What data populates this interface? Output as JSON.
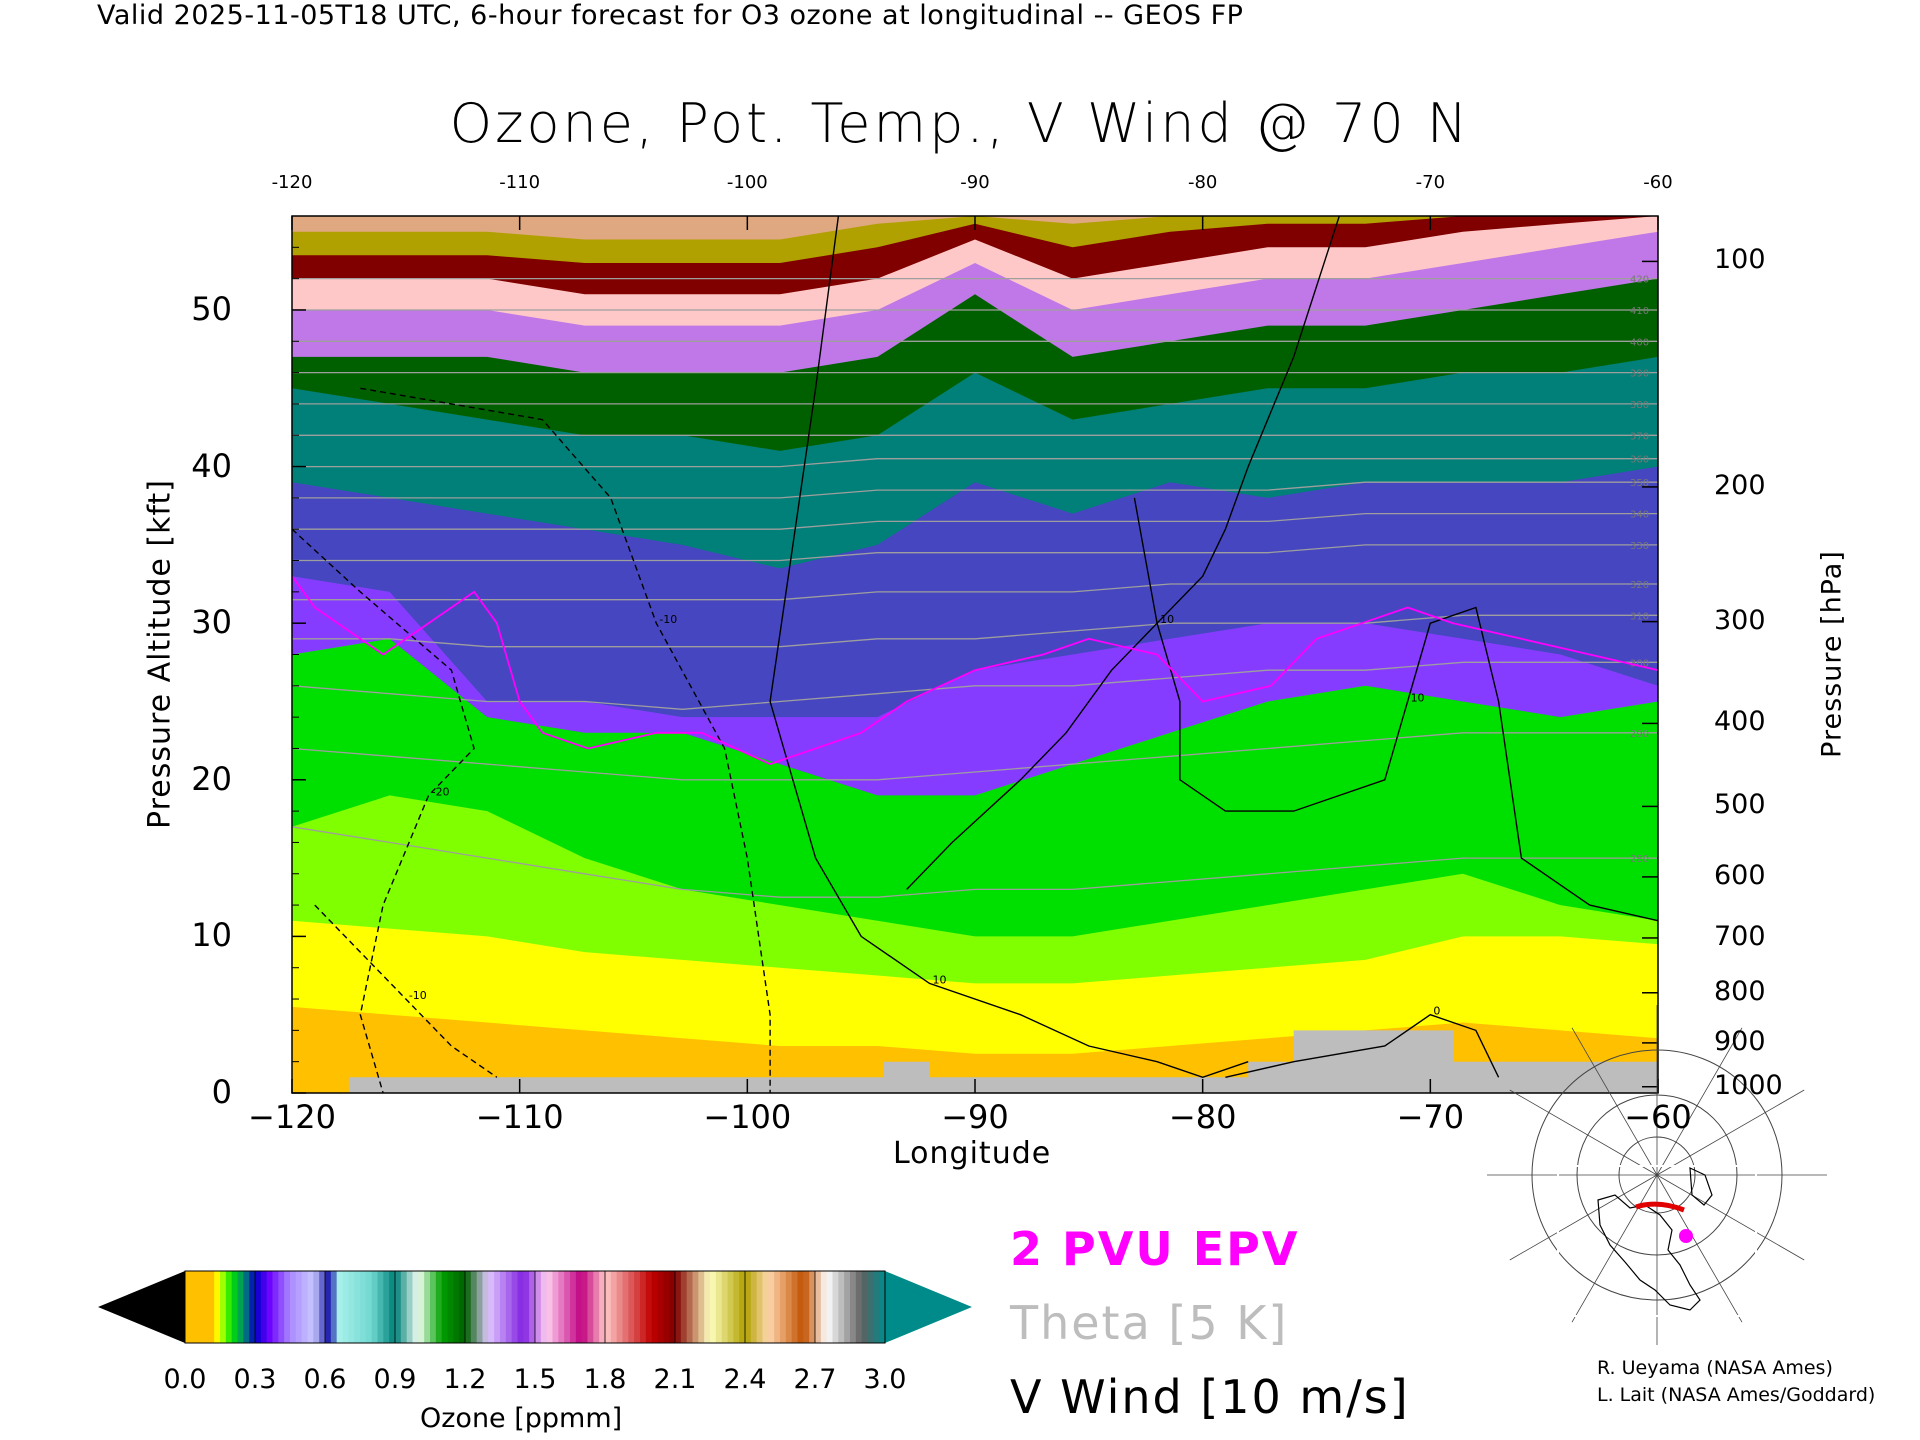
{
  "header": {
    "valid_line": "Valid 2025-11-05T18 UTC, 6-hour forecast for O3 ozone at longitudinal -- GEOS FP"
  },
  "chart_data": {
    "type": "heatmap",
    "title": "Ozone, Pot. Temp., V Wind @ 70 N",
    "xlabel": "Longitude",
    "ylabel": "Pressure Altitude [kft]",
    "y2label": "Pressure [hPa]",
    "xlim": [
      -120,
      -60
    ],
    "ylim": [
      0,
      56
    ],
    "x_ticks": [
      "−120",
      "−110",
      "−100",
      "−90",
      "−80",
      "−70",
      "−60"
    ],
    "x_top_ticks": [
      "-120",
      "-110",
      "-100",
      "-90",
      "-80",
      "-70",
      "-60"
    ],
    "y_ticks": [
      "0",
      "10",
      "20",
      "30",
      "40",
      "50"
    ],
    "pressure_ticks": [
      {
        "label": "1000",
        "alt_kft": 0.4
      },
      {
        "label": "900",
        "alt_kft": 3.2
      },
      {
        "label": "800",
        "alt_kft": 6.4
      },
      {
        "label": "700",
        "alt_kft": 9.9
      },
      {
        "label": "600",
        "alt_kft": 13.8
      },
      {
        "label": "500",
        "alt_kft": 18.3
      },
      {
        "label": "400",
        "alt_kft": 23.6
      },
      {
        "label": "300",
        "alt_kft": 30.1
      },
      {
        "label": "200",
        "alt_kft": 38.7
      },
      {
        "label": "100",
        "alt_kft": 53.1
      }
    ],
    "colorbar": {
      "label": "Ozone [ppmm]",
      "min": 0.0,
      "max": 3.0,
      "tick_labels": [
        "0.0",
        "0.3",
        "0.6",
        "0.9",
        "1.2",
        "1.5",
        "1.8",
        "2.1",
        "2.4",
        "2.7",
        "3.0"
      ]
    },
    "ozone_layers": [
      {
        "ppmm": 0.12,
        "tops_kft": [
          5.5,
          5,
          4.5,
          4,
          3.5,
          3,
          3,
          2.5,
          2.5,
          3,
          3.5,
          4,
          4.5,
          4,
          3.5
        ]
      },
      {
        "ppmm": 0.14,
        "tops_kft": [
          11,
          10.5,
          10,
          9,
          8.5,
          8,
          7.5,
          7,
          7,
          7.5,
          8,
          8.5,
          10,
          10,
          9.5
        ]
      },
      {
        "ppmm": 0.17,
        "tops_kft": [
          17,
          19,
          18,
          15,
          13,
          12,
          11,
          10,
          10,
          11,
          12,
          13,
          14,
          12,
          11
        ]
      },
      {
        "ppmm": 0.2,
        "tops_kft": [
          28,
          29,
          24,
          23,
          23,
          21,
          19,
          19,
          21,
          23,
          25,
          26,
          25,
          24,
          25
        ]
      },
      {
        "ppmm": 0.4,
        "tops_kft": [
          33,
          32,
          25,
          25,
          24,
          24,
          24,
          27,
          28,
          29,
          30,
          30,
          29,
          28,
          26
        ]
      },
      {
        "ppmm": 0.6,
        "tops_kft": [
          39,
          38,
          37,
          36,
          35,
          33.5,
          35,
          39,
          37,
          39,
          38,
          39,
          39,
          39,
          40
        ]
      },
      {
        "ppmm": 0.9,
        "tops_kft": [
          45,
          44,
          43,
          42,
          42,
          41,
          42,
          46,
          43,
          44,
          45,
          45,
          46,
          46,
          47
        ]
      },
      {
        "ppmm": 1.2,
        "tops_kft": [
          47,
          47,
          47,
          46,
          46,
          46,
          47,
          51,
          47,
          48,
          49,
          49,
          50,
          51,
          52
        ]
      },
      {
        "ppmm": 1.5,
        "tops_kft": [
          50,
          50,
          50,
          49,
          49,
          49,
          50,
          53,
          50,
          51,
          52,
          52,
          53,
          54,
          55
        ]
      },
      {
        "ppmm": 1.8,
        "tops_kft": [
          52,
          52,
          52,
          51,
          51,
          51,
          52,
          54.5,
          52,
          53,
          54,
          54,
          55,
          55.5,
          56
        ]
      },
      {
        "ppmm": 2.1,
        "tops_kft": [
          53.5,
          53.5,
          53.5,
          53,
          53,
          53,
          54,
          55.5,
          54,
          55,
          55.5,
          55.5,
          56,
          56,
          56
        ]
      },
      {
        "ppmm": 2.4,
        "tops_kft": [
          55,
          55,
          55,
          54.5,
          54.5,
          54.5,
          55.5,
          56,
          55.5,
          56,
          56,
          56,
          56,
          56,
          56
        ]
      },
      {
        "ppmm": 2.7,
        "tops_kft": [
          56,
          56,
          56,
          56,
          56,
          56,
          56,
          56,
          56,
          56,
          56,
          56,
          56,
          56,
          56
        ]
      }
    ],
    "theta_isentropes": [
      {
        "label": "280",
        "kft": [
          17,
          16,
          15,
          14,
          13,
          12.5,
          12.5,
          13,
          13,
          13.5,
          14,
          14.5,
          15,
          15,
          15
        ]
      },
      {
        "label": "290",
        "kft": [
          22,
          21.5,
          21,
          20.5,
          20,
          20,
          20,
          20.5,
          21,
          21.5,
          22,
          22.5,
          23,
          23,
          23
        ]
      },
      {
        "label": "300",
        "kft": [
          26,
          25.5,
          25,
          25,
          24.5,
          25,
          25.5,
          26,
          26,
          26.5,
          27,
          27,
          27.5,
          27.5,
          27.5
        ]
      },
      {
        "label": "310",
        "kft": [
          29,
          29,
          28.5,
          28.5,
          28.5,
          28.5,
          29,
          29,
          29.5,
          30,
          30,
          30,
          30.5,
          30.5,
          30.5
        ]
      },
      {
        "label": "320",
        "kft": [
          31.5,
          31.5,
          31.5,
          31.5,
          31.5,
          31.5,
          32,
          32,
          32,
          32.5,
          32.5,
          32.5,
          32.5,
          32.5,
          32.5
        ]
      },
      {
        "label": "330",
        "kft": [
          34,
          34,
          34,
          34,
          34,
          34,
          34.5,
          34.5,
          34.5,
          34.5,
          34.5,
          35,
          35,
          35,
          35
        ]
      },
      {
        "label": "340",
        "kft": [
          36,
          36,
          36,
          36,
          36,
          36,
          36.5,
          36.5,
          36.5,
          36.5,
          36.5,
          37,
          37,
          37,
          37
        ]
      },
      {
        "label": "350",
        "kft": [
          38,
          38,
          38,
          38,
          38,
          38,
          38.5,
          38.5,
          38.5,
          38.5,
          38.5,
          39,
          39,
          39,
          39
        ]
      },
      {
        "label": "360",
        "kft": [
          40,
          40,
          40,
          40,
          40,
          40,
          40.5,
          40.5,
          40.5,
          40.5,
          40.5,
          40.5,
          40.5,
          40.5,
          40.5
        ]
      },
      {
        "label": "370",
        "kft": [
          42,
          42,
          42,
          42,
          42,
          42,
          42,
          42,
          42,
          42,
          42,
          42,
          42,
          42,
          42
        ]
      },
      {
        "label": "380",
        "kft": [
          44,
          44,
          44,
          44,
          44,
          44,
          44,
          44,
          44,
          44,
          44,
          44,
          44,
          44,
          44
        ]
      },
      {
        "label": "390",
        "kft": [
          46,
          46,
          46,
          46,
          46,
          46,
          46,
          46,
          46,
          46,
          46,
          46,
          46,
          46,
          46
        ]
      },
      {
        "label": "400",
        "kft": [
          48,
          48,
          48,
          48,
          48,
          48,
          48,
          48,
          48,
          48,
          48,
          48,
          48,
          48,
          48
        ]
      },
      {
        "label": "410",
        "kft": [
          50,
          50,
          50,
          50,
          50,
          50,
          50,
          50,
          50,
          50,
          50,
          50,
          50,
          50,
          50
        ]
      },
      {
        "label": "420",
        "kft": [
          52,
          52,
          52,
          52,
          52,
          52,
          52,
          52,
          52,
          52,
          52,
          52,
          52,
          52,
          52
        ]
      }
    ],
    "v_wind_contours": [
      {
        "label": "10",
        "style": "solid",
        "points": [
          [
            -96,
            56
          ],
          [
            -97,
            45
          ],
          [
            -98,
            35
          ],
          [
            -99,
            25
          ],
          [
            -97,
            15
          ],
          [
            -95,
            10
          ],
          [
            -92,
            7
          ],
          [
            -88,
            5
          ],
          [
            -85,
            3
          ],
          [
            -82,
            2
          ],
          [
            -80,
            1
          ],
          [
            -78,
            2
          ]
        ]
      },
      {
        "label": "10",
        "style": "solid",
        "points": [
          [
            -83,
            38
          ],
          [
            -82,
            30
          ],
          [
            -81,
            25
          ],
          [
            -81,
            20
          ],
          [
            -79,
            18
          ],
          [
            -76,
            18
          ],
          [
            -72,
            20
          ],
          [
            -71,
            25
          ],
          [
            -70,
            30
          ],
          [
            -68,
            31
          ],
          [
            -67,
            25
          ],
          [
            -66,
            15
          ],
          [
            -63,
            12
          ],
          [
            -60,
            11
          ]
        ]
      },
      {
        "label": "10",
        "style": "solid",
        "points": [
          [
            -93,
            13
          ],
          [
            -91,
            16
          ],
          [
            -88,
            20
          ],
          [
            -86,
            23
          ],
          [
            -84,
            27
          ],
          [
            -82,
            30
          ],
          [
            -80,
            33
          ],
          [
            -79,
            36
          ],
          [
            -78,
            40
          ],
          [
            -76,
            47
          ],
          [
            -74,
            56
          ]
        ]
      },
      {
        "label": "0",
        "style": "solid",
        "points": [
          [
            -79,
            1
          ],
          [
            -76,
            2
          ],
          [
            -72,
            3
          ],
          [
            -70,
            5
          ],
          [
            -68,
            4
          ],
          [
            -67,
            1
          ]
        ]
      },
      {
        "label": "-10",
        "style": "dashed",
        "points": [
          [
            -117,
            45
          ],
          [
            -113,
            44
          ],
          [
            -109,
            43
          ],
          [
            -106,
            38
          ],
          [
            -104,
            30
          ],
          [
            -101,
            22
          ],
          [
            -100,
            15
          ],
          [
            -99,
            5
          ],
          [
            -99,
            0
          ]
        ]
      },
      {
        "label": "-20",
        "style": "dashed",
        "points": [
          [
            -120,
            36
          ],
          [
            -117,
            32
          ],
          [
            -113,
            27
          ],
          [
            -112,
            22
          ],
          [
            -114,
            19
          ],
          [
            -116,
            12
          ],
          [
            -117,
            5
          ],
          [
            -116,
            0
          ]
        ]
      },
      {
        "label": "-10",
        "style": "dashed",
        "points": [
          [
            -119,
            12
          ],
          [
            -117,
            9
          ],
          [
            -115,
            6
          ],
          [
            -113,
            3
          ],
          [
            -111,
            1
          ]
        ]
      }
    ],
    "epv_2pvu": [
      {
        "points": [
          [
            -120,
            33
          ],
          [
            -119,
            31
          ],
          [
            -117,
            29
          ],
          [
            -116,
            28
          ],
          [
            -114,
            30
          ],
          [
            -112,
            32
          ],
          [
            -111,
            30
          ],
          [
            -110,
            25
          ],
          [
            -109,
            23
          ],
          [
            -107,
            22
          ],
          [
            -104,
            23
          ],
          [
            -102,
            23
          ],
          [
            -99,
            21
          ],
          [
            -97,
            22
          ],
          [
            -95,
            23
          ],
          [
            -93,
            25
          ],
          [
            -90,
            27
          ],
          [
            -87,
            28
          ],
          [
            -85,
            29
          ],
          [
            -82,
            28
          ],
          [
            -80,
            25
          ],
          [
            -77,
            26
          ],
          [
            -75,
            29
          ],
          [
            -73,
            30
          ],
          [
            -71,
            31
          ],
          [
            -69,
            30
          ],
          [
            -66,
            29
          ],
          [
            -63,
            28
          ],
          [
            -60,
            27
          ]
        ]
      }
    ],
    "legend": {
      "epv": "2 PVU EPV",
      "theta": "Theta [5 K]",
      "wind": "V Wind [10 m/s]"
    }
  },
  "credits": {
    "line1": "R. Ueyama (NASA Ames)",
    "line2": "L. Lait (NASA Ames/Goddard)"
  },
  "colors": {
    "epv": "#ff00ff",
    "theta": "#9e9e9e",
    "wind": "#000000",
    "terrain": "#bdbdbd",
    "map_track": "#e00000",
    "map_marker": "#ff00ff"
  }
}
